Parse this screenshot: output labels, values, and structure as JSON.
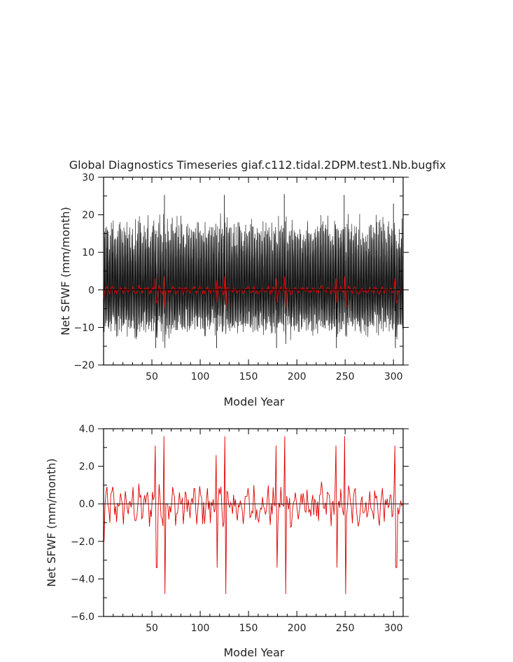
{
  "title": "Global Diagnostics Timeseries giaf.c112.tidal.2DPM.test1.Nb.bugfix",
  "colors": {
    "monthly": "#000000",
    "annual": "#e00000",
    "zero_line": "#000000"
  },
  "chart_data": [
    {
      "type": "line",
      "xlabel": "Model Year",
      "ylabel": "Net SFWF (mm/month)",
      "xlim": [
        0,
        310
      ],
      "ylim": [
        -20,
        30
      ],
      "x_ticks": [
        50,
        100,
        150,
        200,
        250,
        300
      ],
      "y_ticks": [
        -20,
        -10,
        0,
        10,
        20,
        30
      ],
      "x_tick_labels": [
        "50",
        "100",
        "150",
        "200",
        "250",
        "300"
      ],
      "y_tick_labels": [
        "−20",
        "−10",
        "0",
        "10",
        "20",
        "30"
      ],
      "grid": false,
      "zero_line": true,
      "series": [
        {
          "role": "monthly",
          "resolution": "monthly",
          "envelope_max": 25.5,
          "envelope_min": -15.5,
          "typical_high": 18,
          "typical_low": -10,
          "color": "#000000"
        },
        {
          "role": "annual",
          "resolution": "annual",
          "min": -4.8,
          "max": 3.6,
          "color": "#e00000"
        }
      ]
    },
    {
      "type": "line",
      "xlabel": "Model Year",
      "ylabel": "Net SFWF (mm/month)",
      "xlim": [
        0,
        310
      ],
      "ylim": [
        -6,
        4
      ],
      "x_ticks": [
        50,
        100,
        150,
        200,
        250,
        300
      ],
      "y_ticks": [
        -6,
        -4,
        -2,
        0,
        2,
        4
      ],
      "x_tick_labels": [
        "50",
        "100",
        "150",
        "200",
        "250",
        "300"
      ],
      "y_tick_labels": [
        "−6.0",
        "−4.0",
        "−2.0",
        "0.0",
        "2.0",
        "4.0"
      ],
      "grid": false,
      "zero_line": true,
      "series": [
        {
          "role": "annual",
          "resolution": "annual",
          "min": -4.8,
          "max": 3.6,
          "peaks": [
            [
              54,
              3.1
            ],
            [
              63,
              3.6
            ],
            [
              117,
              2.6
            ],
            [
              126,
              3.6
            ],
            [
              179,
              3.1
            ],
            [
              188,
              3.6
            ],
            [
              241,
              3.1
            ],
            [
              250,
              3.6
            ],
            [
              302,
              3.1
            ]
          ],
          "troughs": [
            [
              54,
              -3.4
            ],
            [
              63,
              -4.8
            ],
            [
              117,
              -3.4
            ],
            [
              126,
              -4.8
            ],
            [
              179,
              -3.4
            ],
            [
              188,
              -4.8
            ],
            [
              241,
              -3.4
            ],
            [
              250,
              -4.8
            ],
            [
              302,
              -3.4
            ]
          ],
          "color": "#e00000"
        }
      ]
    }
  ]
}
